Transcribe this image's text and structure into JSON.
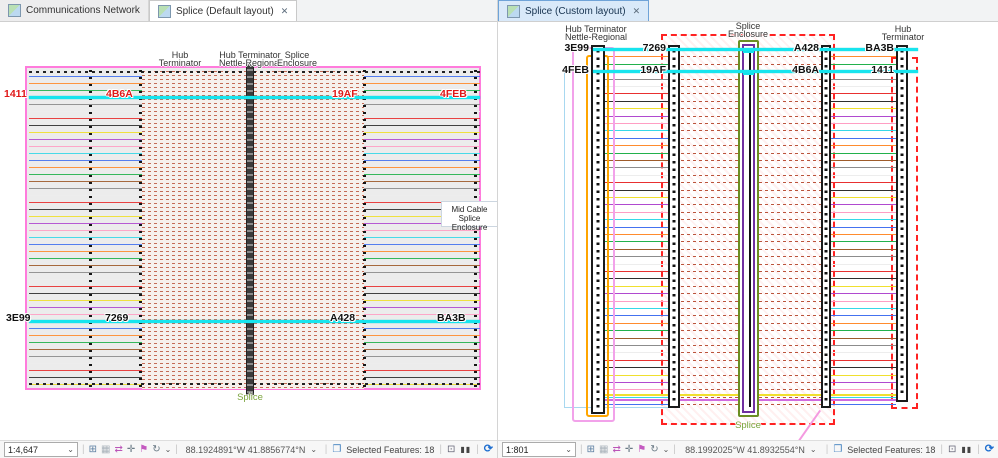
{
  "fiber_palette": [
    "#4472f0",
    "#ff8c2e",
    "#22b14c",
    "#9e5b2a",
    "#8c8c8c",
    "#ededed",
    "#e83030",
    "#2f2f2f",
    "#f0e02e",
    "#b04ad0",
    "#ff9ec4",
    "#36d8e8"
  ],
  "colors": {
    "cyan_selected": "#17e4ee",
    "pink_border": "#ff7bdc",
    "red_dashed": "#ff2222",
    "hatch_dash": "#bb543c",
    "label_red": "#e01818",
    "label_black": "#101010",
    "splice_green": "#7aa33c"
  },
  "status_icons": {
    "add_view": "⊞",
    "grid": "▦",
    "swap": "⇄",
    "crosshair": "✛",
    "flag": "⚑",
    "loop": "↻",
    "chevron": "⌄",
    "selected_features": "❐",
    "box": "⊡",
    "pause": "▮▮",
    "sync": "⟳",
    "separator": "|"
  },
  "left_panel": {
    "tabs": [
      {
        "label": "Communications Network",
        "close": ""
      },
      {
        "label": "Splice (Default layout)",
        "close": "✕"
      }
    ],
    "diagram": {
      "top_labels": [
        [
          "Hub",
          "Terminator"
        ],
        [
          "Hub Terminator",
          "Nettle-Regional"
        ],
        [
          "Splice",
          "Enclosure"
        ]
      ],
      "row1_labels": [
        "1411",
        "4B6A",
        "19AF",
        "4FEB"
      ],
      "row2_labels": [
        "3E99",
        "7269",
        "A428",
        "BA3B"
      ],
      "bottom_label": "Splice",
      "callout": [
        "Mid Cable Splice",
        "Enclosure"
      ]
    },
    "status": {
      "scale": "1:4,647",
      "coords": "88.1924891°W 41.8856774°N",
      "selected": "Selected Features: 18"
    }
  },
  "right_panel": {
    "tabs": [
      {
        "label": "Splice (Custom layout)",
        "close": "✕"
      }
    ],
    "diagram": {
      "top_labels": [
        [
          "Hub Terminator",
          "Nettle-Regional"
        ],
        [
          "Splice",
          "Enclosure"
        ],
        [
          "Hub",
          "Terminator"
        ]
      ],
      "row1_labels": [
        "3E99",
        "7269",
        "A428",
        "BA3B"
      ],
      "row2_labels": [
        "4FEB",
        "19AF",
        "4B6A",
        "1411"
      ],
      "bottom_label": "Splice"
    },
    "status": {
      "scale": "1:801",
      "coords": "88.1992025°W 41.8932554°N",
      "selected": "Selected Features: 18"
    }
  }
}
